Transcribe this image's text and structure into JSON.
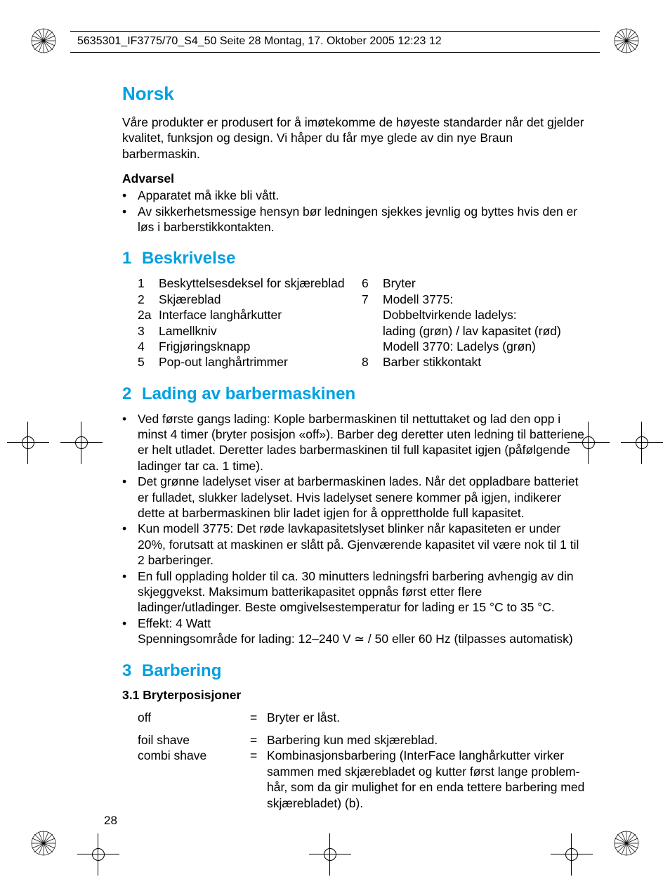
{
  "header_line": "5635301_IF3775/70_S4_50  Seite 28  Montag, 17. Oktober 2005  12:23 12",
  "page_number": "28",
  "lang_title": "Norsk",
  "intro": "Våre produkter er produsert for å imøtekomme de høyeste standarder når det gjelder kvalitet, funksjon og design. Vi håper du får mye glede av din nye Braun barbermaskin.",
  "warning_head": "Advarsel",
  "warnings": [
    "Apparatet må ikke bli vått.",
    "Av sikkerhetsmessige hensyn bør ledningen sjekkes jevnlig og byttes hvis den er løs i barberstikkontakten."
  ],
  "sec1_num": "1",
  "sec1_title": "Beskrivelse",
  "desc_left": [
    {
      "n": "1",
      "t": "Beskyttelsesdeksel for skjæreblad"
    },
    {
      "n": "2",
      "t": "Skjæreblad"
    },
    {
      "n": "2a",
      "t": "Interface langhårkutter"
    },
    {
      "n": "3",
      "t": "Lamellkniv"
    },
    {
      "n": "4",
      "t": "Frigjøringsknapp"
    },
    {
      "n": "5",
      "t": "Pop-out langhårtrimmer"
    }
  ],
  "desc_right": [
    {
      "n": "6",
      "t": "Bryter"
    },
    {
      "n": "7",
      "t": "Modell 3775:"
    },
    {
      "n": "",
      "t": "Dobbeltvirkende ladelys:"
    },
    {
      "n": "",
      "t": "lading (grøn) / lav kapasitet (rød)"
    },
    {
      "n": "",
      "t": "Modell 3770: Ladelys (grøn)"
    },
    {
      "n": "8",
      "t": "Barber stikkontakt"
    }
  ],
  "sec2_num": "2",
  "sec2_title": "Lading av barbermaskinen",
  "sec2_bullets": [
    "Ved første gangs lading: Kople barbermaskinen til nettuttaket og lad den opp i minst 4 timer (bryter posisjon «off»). Barber deg deretter uten ledning til batteriene er helt utladet. Deretter lades barbermaskinen til full kapasitet igjen (påfølgende ladinger tar ca. 1 time).",
    "Det grønne ladelyset viser at barbermaskinen lades. Når det oppladbare batteriet er  fulladet, slukker ladelyset. Hvis ladelyset senere kommer på igjen, indikerer dette at  barbermaskinen blir ladet igjen for å opprettholde full kapasitet.",
    "Kun modell 3775: Det røde lavkapasitetslyset blinker når kapasiteten er under 20%, forutsatt at maskinen er slått på. Gjenværende kapasitet vil være nok til 1 til 2 barberinger.",
    "En full opplading holder til ca. 30 minutters ledningsfri barbering avhengig av din skjeggvekst. Maksimum batterikapasitet oppnås først etter flere ladinger/utladinger. Beste omgivelsestemperatur for lading er 15 °C to 35 °C.",
    "Effekt: 4 Watt\nSpenningsområde for lading: 12–240 V ≃ / 50 eller 60 Hz (tilpasses automatisk)"
  ],
  "sec3_num": "3",
  "sec3_title": "Barbering",
  "sec3_sub": "3.1 Bryterposisjoner",
  "switch_rows": [
    {
      "label": "off",
      "eq": "=",
      "desc": "Bryter er låst."
    },
    {
      "label": "foil shave",
      "eq": "=",
      "desc": "Barbering kun med skjæreblad."
    },
    {
      "label": "combi shave",
      "eq": "=",
      "desc": "Kombinasjonsbarbering (InterFace langhårkutter virker sammen med skjærebladet og kutter først lange problem-hår, som da gir mulighet for en enda tettere barbering med skjærebladet) (b)."
    }
  ],
  "colors": {
    "accent": "#00a0e0",
    "text": "#000000",
    "background": "#ffffff"
  }
}
